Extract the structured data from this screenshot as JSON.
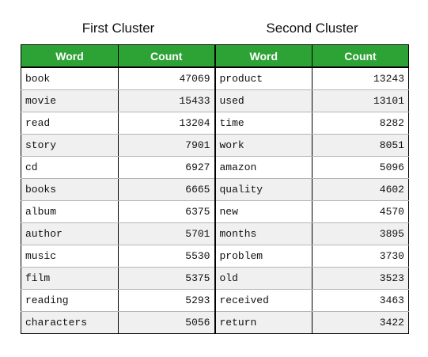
{
  "clusters": [
    {
      "title": "First Cluster",
      "headers": {
        "word": "Word",
        "count": "Count"
      },
      "rows": [
        {
          "word": "book",
          "count": "47069"
        },
        {
          "word": "movie",
          "count": "15433"
        },
        {
          "word": "read",
          "count": "13204"
        },
        {
          "word": "story",
          "count": "7901"
        },
        {
          "word": "cd",
          "count": "6927"
        },
        {
          "word": "books",
          "count": "6665"
        },
        {
          "word": "album",
          "count": "6375"
        },
        {
          "word": "author",
          "count": "5701"
        },
        {
          "word": "music",
          "count": "5530"
        },
        {
          "word": "film",
          "count": "5375"
        },
        {
          "word": "reading",
          "count": "5293"
        },
        {
          "word": "characters",
          "count": "5056"
        }
      ]
    },
    {
      "title": "Second Cluster",
      "headers": {
        "word": "Word",
        "count": "Count"
      },
      "rows": [
        {
          "word": "product",
          "count": "13243"
        },
        {
          "word": "used",
          "count": "13101"
        },
        {
          "word": "time",
          "count": "8282"
        },
        {
          "word": "work",
          "count": "8051"
        },
        {
          "word": "amazon",
          "count": "5096"
        },
        {
          "word": "quality",
          "count": "4602"
        },
        {
          "word": "new",
          "count": "4570"
        },
        {
          "word": "months",
          "count": "3895"
        },
        {
          "word": "problem",
          "count": "3730"
        },
        {
          "word": "old",
          "count": "3523"
        },
        {
          "word": "received",
          "count": "3463"
        },
        {
          "word": "return",
          "count": "3422"
        }
      ]
    }
  ],
  "colors": {
    "header_bg": "#2ea335",
    "header_text": "#ffffff",
    "stripe": "#f0f0f0"
  }
}
